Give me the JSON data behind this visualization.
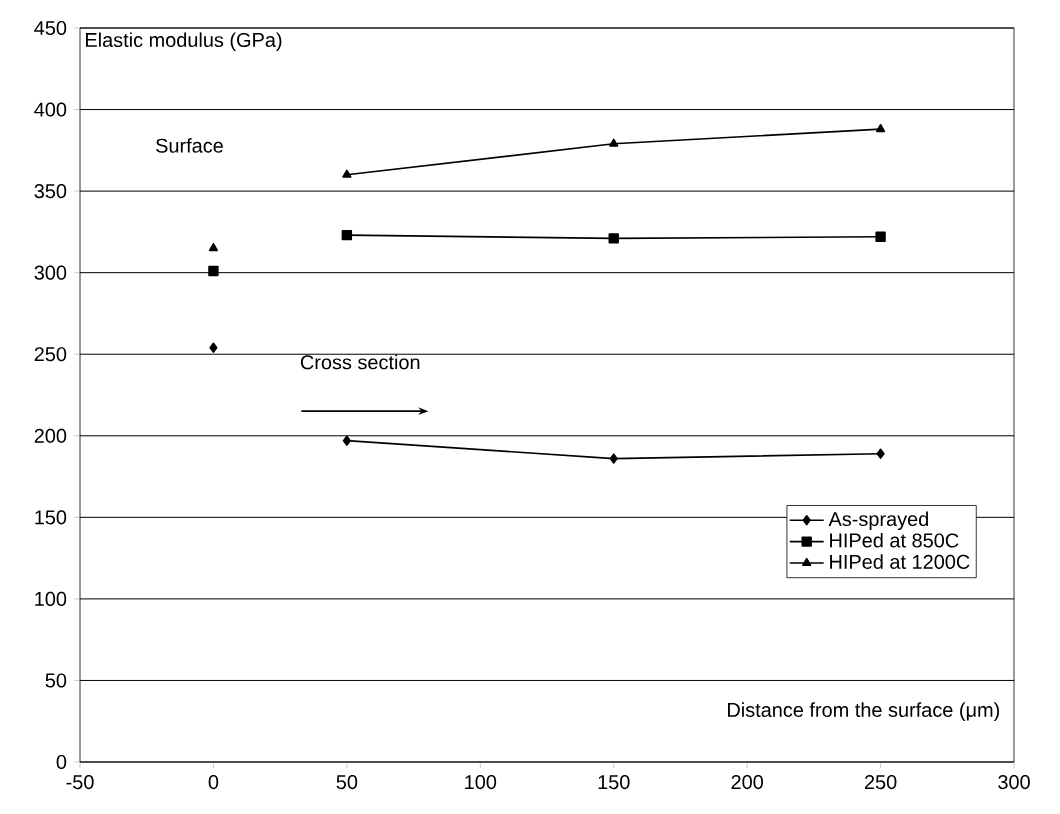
{
  "chart_data": {
    "type": "line",
    "xlabel": "Distance from the surface (μm)",
    "ylabel": "Elastic modulus (GPa)",
    "x": [
      0,
      25,
      50,
      150,
      250
    ],
    "series": [
      {
        "name": "As-sprayed",
        "color": "#000000",
        "marker": "diamond",
        "values": [
          254,
          null,
          197,
          186,
          189
        ]
      },
      {
        "name": "HIPed at 850C",
        "color": "#000000",
        "marker": "square",
        "values": [
          301,
          null,
          323,
          321,
          322
        ]
      },
      {
        "name": "HIPed at 1200C",
        "color": "#000000",
        "marker": "triangle",
        "values": [
          315,
          null,
          360,
          379,
          388
        ]
      }
    ],
    "xlim": [
      -50,
      300
    ],
    "xticks": [
      -50,
      0,
      50,
      100,
      150,
      200,
      250,
      300
    ],
    "ylim": [
      0,
      450
    ],
    "yticks": [
      0,
      50,
      100,
      150,
      200,
      250,
      300,
      350,
      400,
      450
    ],
    "grid": "y",
    "legend": "bottom right",
    "line_style": "solid",
    "annotations": [
      "Surface",
      "Cross section"
    ]
  }
}
